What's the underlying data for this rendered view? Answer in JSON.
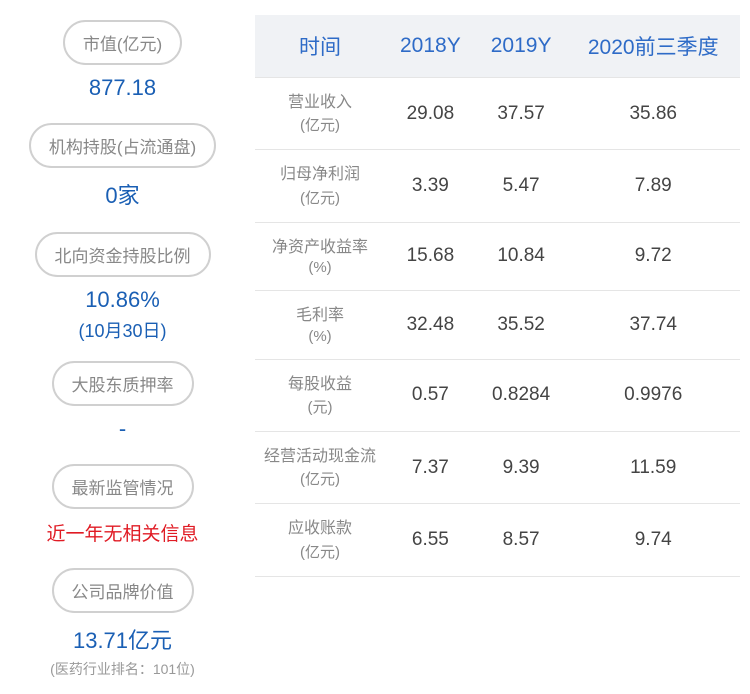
{
  "left_cards": [
    {
      "label": "市值(亿元)",
      "value": "877.18",
      "value_type": "normal"
    },
    {
      "label": "机构持股(占流通盘)",
      "value": "0家",
      "value_type": "normal"
    },
    {
      "label": "北向资金持股比例",
      "value": "10.86%",
      "subvalue": "(10月30日)",
      "value_type": "normal"
    },
    {
      "label": "大股东质押率",
      "value": "-",
      "value_type": "dash"
    },
    {
      "label": "最新监管情况",
      "value": "近一年无相关信息",
      "value_type": "red"
    },
    {
      "label": "公司品牌价值",
      "value": "13.71亿元",
      "subtext": "(医药行业排名：101位)",
      "value_type": "normal"
    }
  ],
  "table": {
    "columns": [
      "时间",
      "2018Y",
      "2019Y",
      "2020前三季度"
    ],
    "rows": [
      {
        "label": "营业收入",
        "unit": "(亿元)",
        "values": [
          "29.08",
          "37.57",
          "35.86"
        ]
      },
      {
        "label": "归母净利润",
        "unit": "(亿元)",
        "values": [
          "3.39",
          "5.47",
          "7.89"
        ]
      },
      {
        "label": "净资产收益率",
        "unit": "(%)",
        "values": [
          "15.68",
          "10.84",
          "9.72"
        ]
      },
      {
        "label": "毛利率",
        "unit": "(%)",
        "values": [
          "32.48",
          "35.52",
          "37.74"
        ]
      },
      {
        "label": "每股收益",
        "unit": "(元)",
        "values": [
          "0.57",
          "0.8284",
          "0.9976"
        ]
      },
      {
        "label": "经营活动现金流",
        "unit": "(亿元)",
        "values": [
          "7.37",
          "9.39",
          "11.59"
        ]
      },
      {
        "label": "应收账款",
        "unit": "(亿元)",
        "values": [
          "6.55",
          "8.57",
          "9.74"
        ]
      }
    ]
  },
  "colors": {
    "header_text": "#2e6bc7",
    "header_bg": "#f0f2f5",
    "value_blue": "#1a5fb4",
    "value_red": "#e01b24",
    "label_gray": "#888888",
    "cell_text": "#444444",
    "border": "#e5e5e5",
    "card_border": "#d0d0d0"
  }
}
